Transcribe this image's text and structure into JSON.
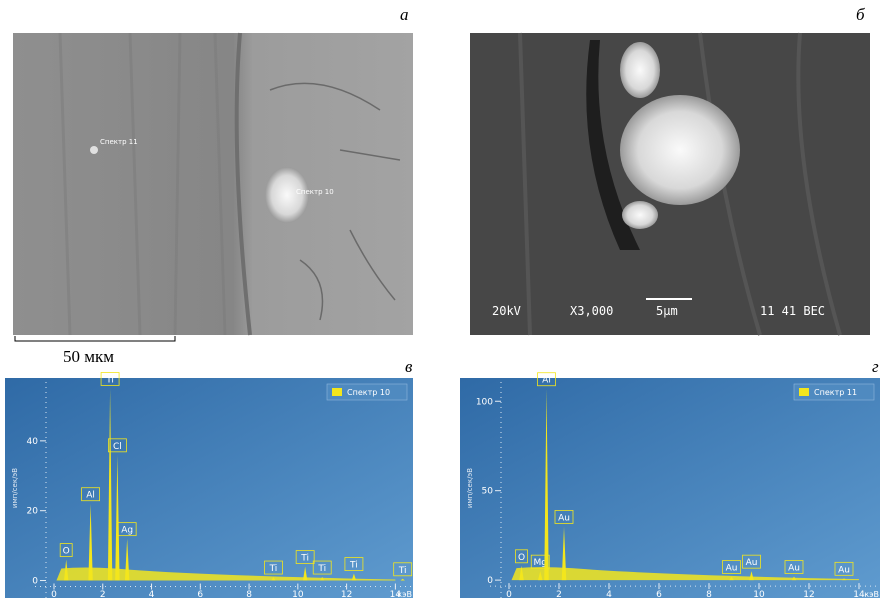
{
  "panels": [
    {
      "label": "а",
      "annotations": [
        "Спектр 11",
        "Спектр 10"
      ],
      "scale_bar": "50 мкм"
    },
    {
      "label": "б",
      "info": [
        "20kV",
        "X3,000",
        "5µm",
        "11 41 BEC"
      ]
    }
  ],
  "chart_data": [
    {
      "type": "bar",
      "panel_label": "в",
      "y_label": "имп/сек/эВ",
      "x_label": "кэВ",
      "x": [
        0.5,
        1.5,
        2.3,
        2.6,
        3.0,
        9.0,
        10.3,
        11.0,
        12.3,
        14.3
      ],
      "values": [
        6,
        22,
        55,
        36,
        12,
        1,
        4,
        1,
        2,
        0.5
      ],
      "labels": [
        "O",
        "Al",
        "Ti",
        "Cl",
        "Ag",
        "Ti",
        "Ti",
        "Ti",
        "Ti",
        "Ti"
      ],
      "series_name": "Спектр 10",
      "color": "#f3e61c",
      "legend": "upper right",
      "xlim": [
        0,
        14.6
      ],
      "xticks": [
        0,
        2,
        4,
        6,
        8,
        10,
        12,
        14
      ],
      "ylim": [
        -5,
        58
      ],
      "yticks": [
        0,
        20,
        40
      ]
    },
    {
      "type": "bar",
      "panel_label": "г",
      "y_label": "имп/сек/эВ",
      "x_label": "кэВ",
      "x": [
        0.5,
        1.25,
        1.5,
        2.2,
        8.9,
        9.7,
        11.4,
        13.4
      ],
      "values": [
        8,
        5,
        107,
        30,
        2,
        5,
        2,
        1
      ],
      "labels": [
        "O",
        "Mg",
        "Al",
        "Au",
        "Au",
        "Au",
        "Au",
        "Au"
      ],
      "series_name": "Спектр 11",
      "color": "#f3e61c",
      "legend": "upper right",
      "xlim": [
        0,
        14.8
      ],
      "xticks": [
        0,
        2,
        4,
        6,
        8,
        10,
        12,
        14
      ],
      "ylim": [
        -10,
        113
      ],
      "yticks": [
        0,
        50,
        100
      ]
    }
  ]
}
